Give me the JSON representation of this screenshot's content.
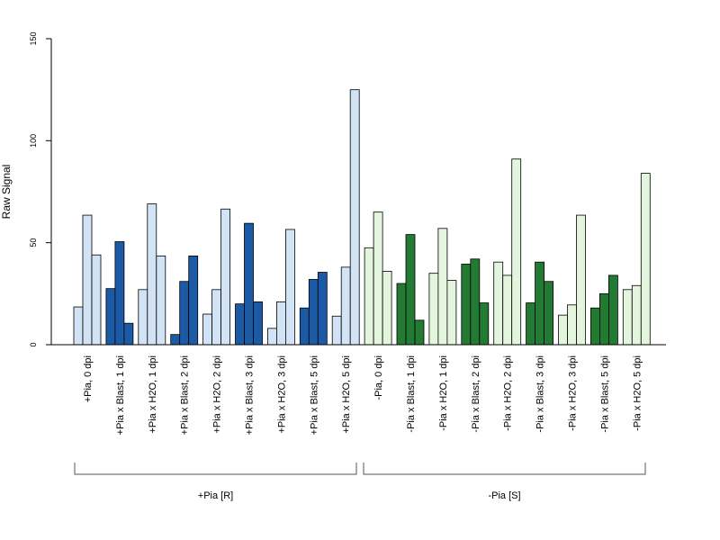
{
  "chart_data": {
    "type": "bar",
    "ylabel": "Raw Signal",
    "xlabel": "",
    "ylim": [
      0,
      150
    ],
    "yticks": [
      0,
      50,
      100,
      150
    ],
    "grid": false,
    "legend": "none",
    "colors": {
      "R_light": "#d2e3f5",
      "R_dark": "#1c5aa6",
      "S_light": "#e4f5de",
      "S_dark": "#237a33",
      "edge": "#000000"
    },
    "categories": [
      "+Pia, 0 dpi",
      "+Pia x Blast, 1 dpi",
      "+Pia x H2O, 1 dpi",
      "+Pia x Blast, 2 dpi",
      "+Pia x H2O, 2 dpi",
      "+Pia x Blast, 3 dpi",
      "+Pia x H2O, 3 dpi",
      "+Pia x Blast, 5 dpi",
      "+Pia x H2O, 5 dpi",
      "-Pia, 0 dpi",
      "-Pia x Blast, 1 dpi",
      "-Pia x H2O, 1 dpi",
      "-Pia x Blast, 2 dpi",
      "-Pia x H2O, 2 dpi",
      "-Pia x Blast, 3 dpi",
      "-Pia x H2O, 3 dpi",
      "-Pia x Blast, 5 dpi",
      "-Pia x H2O, 5 dpi"
    ],
    "category_shade": [
      "light",
      "dark",
      "light",
      "dark",
      "light",
      "dark",
      "light",
      "dark",
      "light",
      "light",
      "dark",
      "light",
      "dark",
      "light",
      "dark",
      "light",
      "dark",
      "light"
    ],
    "category_genotype": [
      "R",
      "R",
      "R",
      "R",
      "R",
      "R",
      "R",
      "R",
      "R",
      "S",
      "S",
      "S",
      "S",
      "S",
      "S",
      "S",
      "S",
      "S"
    ],
    "values": [
      [
        18.5,
        63.5,
        44
      ],
      [
        27.5,
        50.5,
        10.5
      ],
      [
        27,
        69,
        43.5
      ],
      [
        5,
        31,
        43.5
      ],
      [
        15,
        27,
        66.5
      ],
      [
        20,
        59.5,
        21
      ],
      [
        8,
        21,
        56.5
      ],
      [
        18,
        32,
        35.5
      ],
      [
        14,
        38,
        125
      ],
      [
        47.5,
        65,
        36
      ],
      [
        30,
        54,
        12
      ],
      [
        35,
        57,
        31.5
      ],
      [
        39.5,
        42,
        20.5
      ],
      [
        40.5,
        34,
        91
      ],
      [
        20.5,
        40.5,
        31
      ],
      [
        14.5,
        19.5,
        63.5
      ],
      [
        18,
        25,
        34
      ],
      [
        27,
        29,
        84
      ]
    ],
    "groups": [
      {
        "label": "+Pia [R]",
        "from": 0,
        "to": 8
      },
      {
        "label": "-Pia [S]",
        "from": 9,
        "to": 17
      }
    ]
  }
}
